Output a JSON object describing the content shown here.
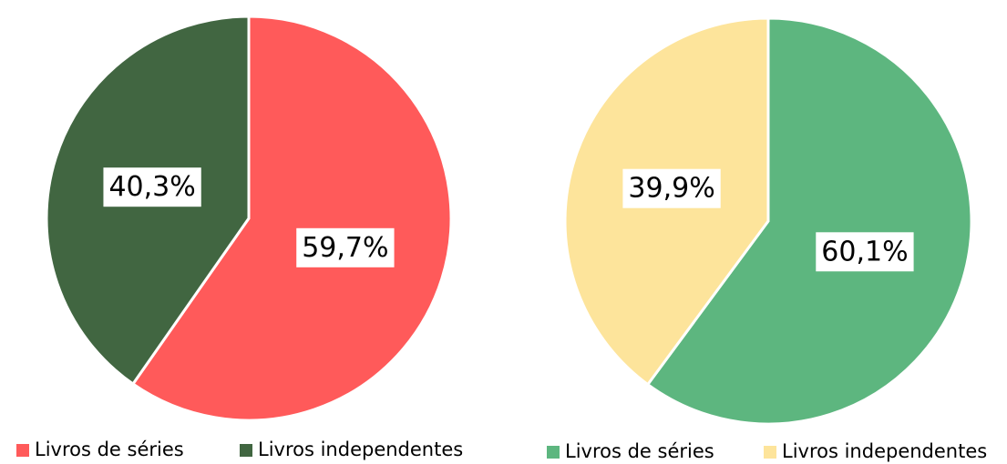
{
  "chart_data": [
    {
      "type": "pie",
      "categories": [
        "Livros de séries",
        "Livros independentes"
      ],
      "values": [
        59.7,
        40.3
      ],
      "value_labels": [
        "59,7%",
        "40,3%"
      ],
      "colors": [
        "#ff5a5a",
        "#416641"
      ]
    },
    {
      "type": "pie",
      "categories": [
        "Livros de séries",
        "Livros independentes"
      ],
      "values": [
        60.1,
        39.9
      ],
      "value_labels": [
        "60,1%",
        "39,9%"
      ],
      "colors": [
        "#5db67f",
        "#fde49b"
      ]
    }
  ]
}
